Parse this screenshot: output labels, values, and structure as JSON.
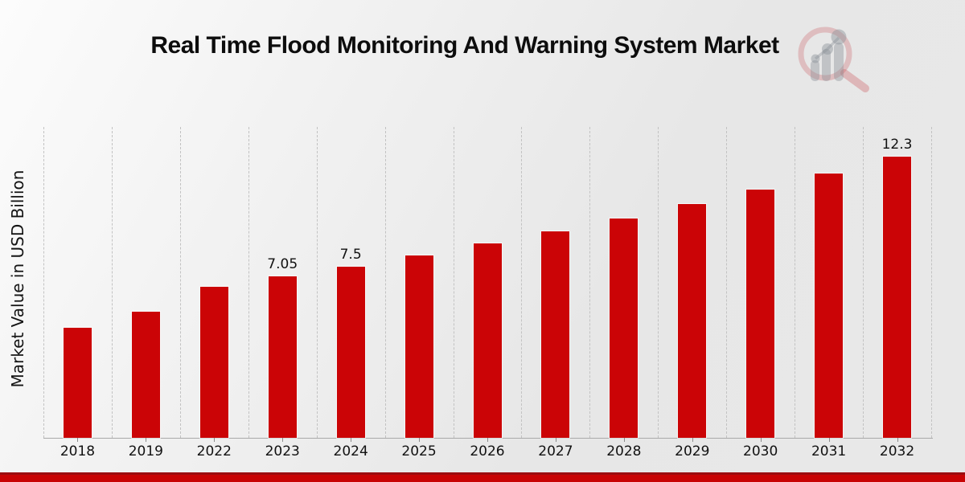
{
  "page": {
    "background_style": "light gray diagonal gradient",
    "footer_band_color": "#c80304",
    "footer_band_top_line_color": "#9b0d10"
  },
  "header": {
    "title": "Real Time Flood Monitoring And Warning System Market",
    "logo_icon": "magnifier-with-bar-chart watermark",
    "logo_colors": {
      "ring": "rgba(198,70,76,0.28)",
      "bars": "rgba(140,146,152,0.42)"
    }
  },
  "chart_data": {
    "type": "bar",
    "title": "Real Time Flood Monitoring And Warning System Market",
    "xlabel": "",
    "ylabel": "Market Value in USD Billion",
    "categories": [
      "2018",
      "2019",
      "2022",
      "2023",
      "2024",
      "2025",
      "2026",
      "2027",
      "2028",
      "2029",
      "2030",
      "2031",
      "2032"
    ],
    "values": [
      4.8,
      5.5,
      6.6,
      7.05,
      7.5,
      7.98,
      8.49,
      9.03,
      9.6,
      10.21,
      10.87,
      11.55,
      12.3
    ],
    "bar_labels": [
      "",
      "",
      "",
      "7.05",
      "7.5",
      "",
      "",
      "",
      "",
      "",
      "",
      "",
      "12.3"
    ],
    "bar_color": "#cb0406",
    "ylim": [
      0,
      13.6
    ],
    "grid": "vertical dashed lines at category boundaries",
    "legend_position": "none",
    "tick_label_color": "#111111",
    "gridline_color": "#c2c2c2"
  }
}
